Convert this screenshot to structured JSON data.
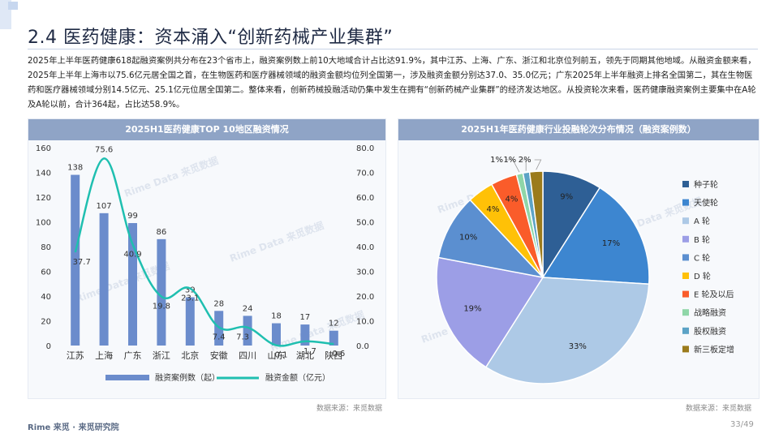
{
  "header": {
    "title": "2.4 医药健康：资本涌入“创新药械产业集群”",
    "paragraph": "2025年上半年医药健康618起融资案例共分布在23个省市上，融资案例数上前10大地域合计占比达91.9%，其中江苏、上海、广东、浙江和北京位列前五，领先于同期其他地域。从融资金额来看，2025年上半年上海市以75.6亿元居全国之首，在生物医药和医疗器械领域的融资金额均位列全国第一，涉及融资金额分别达37.0、35.0亿元；广东2025年上半年融资上排名全国第二，其在生物医药和医疗器械领域分别14.5亿元、25.1亿元位居全国第二。整体来看，创新药械投融活动仍集中发生在拥有“创新药械产业集群”的经济发达地区。从投资轮次来看，医药健康融资案例主要集中在A轮及A轮以前，合计364起，占比达58.9%。"
  },
  "left_panel": {
    "title": "2025H1医药健康TOP  10地区融资情况",
    "source": "数据来源：来觅数据"
  },
  "right_panel": {
    "title": "2025H1年医药健康行业投融轮次分布情况（融资案例数）",
    "source": "数据来源：来觅数据"
  },
  "footer": {
    "brand": "Rime 来觅 · 来觅研究院",
    "page": "33/49"
  },
  "watermark": "Rime Data 来觅数据",
  "chart_data": [
    {
      "type": "bar",
      "title": "2025H1医药健康TOP  10地区融资情况",
      "categories": [
        "江苏",
        "上海",
        "广东",
        "浙江",
        "北京",
        "安徽",
        "四川",
        "山东",
        "湖北",
        "陕西"
      ],
      "series": [
        {
          "name": "融资案例数（起）",
          "type": "bar",
          "axis": "left",
          "color": "#6b8ccc",
          "values": [
            138,
            107,
            99,
            86,
            39,
            28,
            24,
            18,
            17,
            12
          ]
        },
        {
          "name": "融资金额（亿元）",
          "type": "line",
          "axis": "right",
          "color": "#1fbfb0",
          "values": [
            37.7,
            75.6,
            40.9,
            19.8,
            23.1,
            7.4,
            7.3,
            0.1,
            1.7,
            0.6
          ]
        }
      ],
      "y_left": {
        "range": [
          0,
          160
        ],
        "ticks": [
          "0",
          "20",
          "40",
          "60",
          "80",
          "100",
          "120",
          "140",
          "160"
        ]
      },
      "y_right": {
        "range": [
          0,
          80
        ],
        "ticks": [
          "0.0",
          "10.0",
          "20.0",
          "30.0",
          "40.0",
          "50.0",
          "60.0",
          "70.0",
          "80.0"
        ]
      },
      "legend": "bottom",
      "grid": false
    },
    {
      "type": "pie",
      "title": "2025H1年医药健康行业投融轮次分布情况（融资案例数）",
      "labels": [
        "种子轮",
        "天使轮",
        "A 轮",
        "B 轮",
        "C 轮",
        "D 轮",
        "E 轮及以后",
        "战略融资",
        "股权融资",
        "新三板定增"
      ],
      "values": [
        9,
        17,
        33,
        19,
        10,
        4,
        4,
        1,
        1,
        2
      ],
      "value_labels": [
        "9%",
        "17%",
        "33%",
        "19%",
        "10%",
        "4%",
        "4%",
        "1%",
        "1%",
        "2%"
      ],
      "colors": [
        "#2e5f95",
        "#3d86d0",
        "#adc9e6",
        "#9c9ee6",
        "#5b8fd0",
        "#ffc107",
        "#fa5c2a",
        "#8fd6a8",
        "#5ca3c6",
        "#9b7b1c"
      ],
      "legend": "right"
    }
  ]
}
